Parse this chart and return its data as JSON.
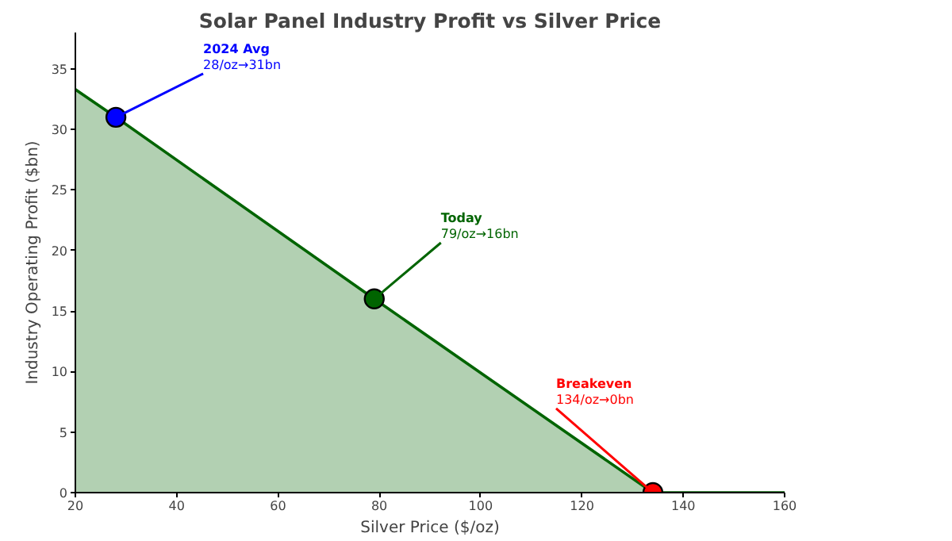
{
  "chart_data": {
    "type": "area",
    "title": "Solar Panel Industry Profit vs Silver Price",
    "xlabel": "Silver Price ($/oz)",
    "ylabel": "Industry Operating Profit ($bn)",
    "xlim": [
      20,
      160
    ],
    "ylim": [
      0,
      38
    ],
    "xticks": [
      20,
      40,
      60,
      80,
      100,
      120,
      140,
      160
    ],
    "yticks": [
      0,
      5,
      10,
      15,
      20,
      25,
      30,
      35
    ],
    "grid": false,
    "series": [
      {
        "color": "#006400",
        "x": [
          20,
          28,
          79,
          134,
          160
        ],
        "values": [
          33.3,
          31,
          16,
          0,
          0
        ]
      },
      {
        "type": "scatter",
        "marker": "circle",
        "colors": [
          "#0000ff",
          "#006400",
          "#ff0000"
        ],
        "x": [
          28,
          79,
          134
        ],
        "values": [
          31,
          16,
          0
        ]
      }
    ],
    "annotations": [
      {
        "text": "2024 Avg\n28/oz→31bn",
        "x": 28,
        "y": 31
      },
      {
        "text": "Today\n79/oz→16bn",
        "x": 79,
        "y": 16
      },
      {
        "text": "Breakeven\n134/oz→0bn",
        "x": 134,
        "y": 0
      }
    ]
  }
}
